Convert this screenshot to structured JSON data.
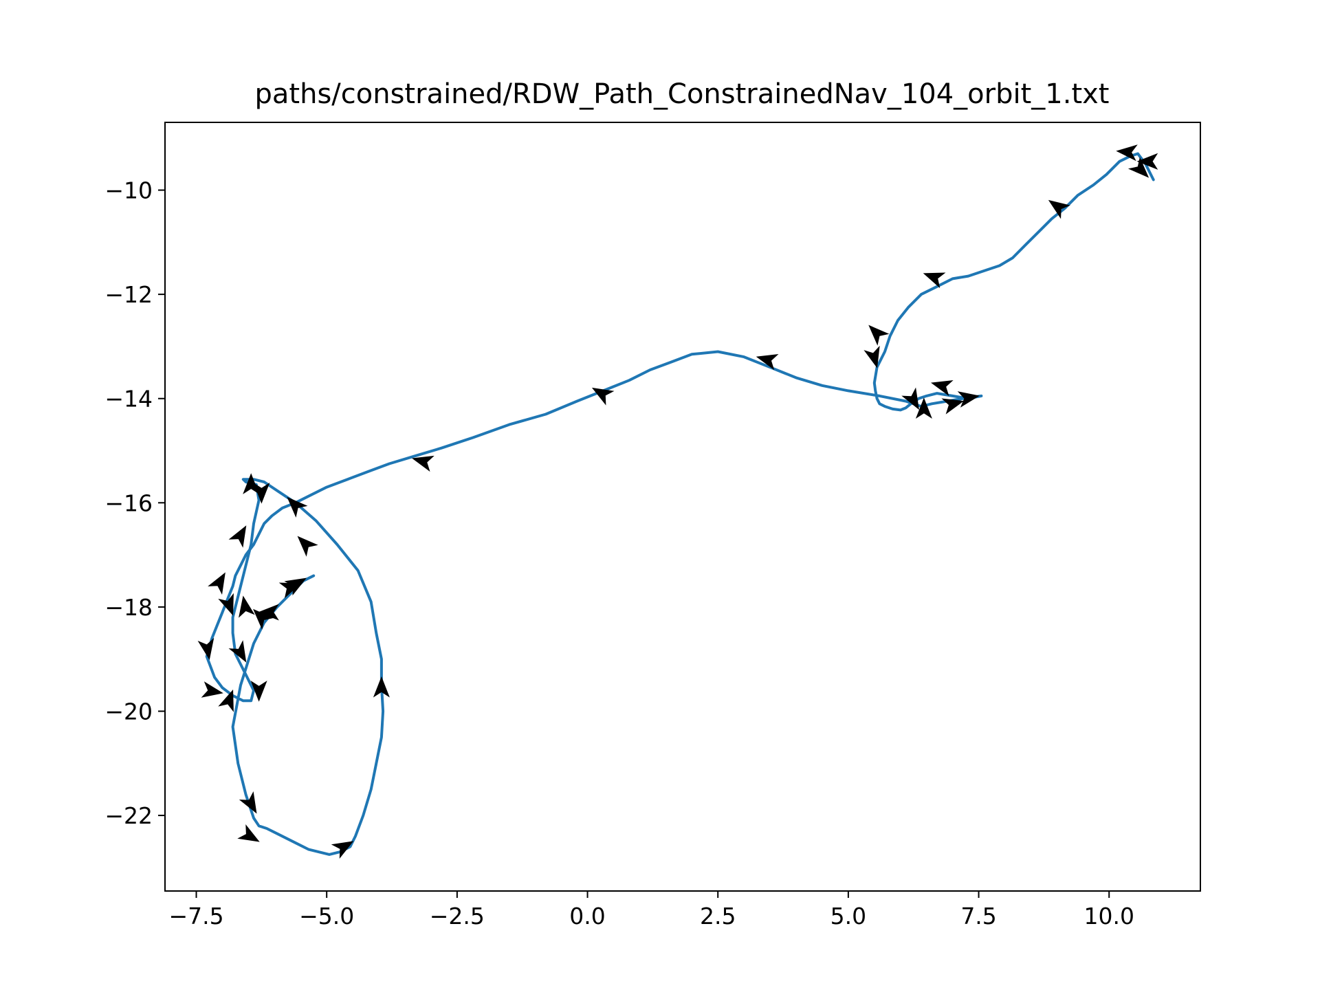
{
  "chart_data": {
    "type": "line",
    "title": "paths/constrained/RDW_Path_ConstrainedNav_104_orbit_1.txt",
    "xlabel": "",
    "ylabel": "",
    "xlim": [
      -8.1,
      11.75
    ],
    "ylim": [
      -23.45,
      -8.7
    ],
    "x_ticks": [
      -7.5,
      -5.0,
      -2.5,
      0.0,
      2.5,
      5.0,
      7.5,
      10.0
    ],
    "x_tick_labels": [
      "−7.5",
      "−5.0",
      "−2.5",
      "0.0",
      "2.5",
      "5.0",
      "7.5",
      "10.0"
    ],
    "y_ticks": [
      -10,
      -12,
      -14,
      -16,
      -18,
      -20,
      -22
    ],
    "y_tick_labels": [
      "−10",
      "−12",
      "−14",
      "−16",
      "−18",
      "−20",
      "−22"
    ],
    "grid": false,
    "colors": {
      "path": "#1f77b4",
      "arrows": "#000000"
    },
    "series": [
      {
        "x": [
          10.85,
          10.7,
          10.55,
          10.4,
          10.2,
          9.95,
          9.7,
          9.4,
          9.15,
          8.9,
          8.65,
          8.4,
          8.15,
          7.9,
          7.6,
          7.3,
          7.0,
          6.7,
          6.4,
          6.15,
          5.95,
          5.8,
          5.7,
          5.55,
          5.5,
          5.52,
          5.55,
          5.6,
          5.7,
          5.85,
          6.0,
          6.1,
          6.2,
          6.35,
          6.5,
          6.7,
          7.0,
          7.3,
          7.55,
          7.2,
          6.9,
          6.6,
          6.4,
          6.1,
          5.6,
          5.0,
          4.5,
          4.0,
          3.5,
          3.0,
          2.5,
          2.0,
          1.6,
          1.2,
          0.8,
          0.3,
          -0.2,
          -0.8,
          -1.5,
          -2.2,
          -2.8,
          -3.3,
          -3.8,
          -4.2,
          -4.6,
          -5.0,
          -5.3,
          -5.6,
          -5.85,
          -6.05,
          -6.2,
          -6.3,
          -6.4,
          -6.55,
          -6.65,
          -6.75,
          -6.8,
          -6.9,
          -7.0,
          -7.1,
          -7.2,
          -7.3,
          -7.15,
          -7.0,
          -6.8,
          -6.6,
          -6.45,
          -6.4,
          -6.55,
          -6.75,
          -6.8,
          -6.8,
          -6.75,
          -6.65,
          -6.55,
          -6.45,
          -6.4,
          -6.3,
          -6.35,
          -6.55,
          -6.6,
          -6.4,
          -6.2,
          -5.9,
          -5.6,
          -5.2,
          -4.8,
          -4.4,
          -4.15,
          -4.05,
          -3.95,
          -3.95,
          -3.92,
          -3.95,
          -4.05,
          -4.15,
          -4.3,
          -4.45,
          -4.55,
          -4.75,
          -4.95,
          -5.15,
          -5.35,
          -5.55,
          -5.75,
          -5.95,
          -6.15,
          -6.3,
          -6.4,
          -6.55,
          -6.7,
          -6.8,
          -6.65,
          -6.4,
          -6.2,
          -5.95,
          -5.75,
          -5.55,
          -5.45,
          -5.35,
          -5.25
        ],
        "y": [
          -9.8,
          -9.5,
          -9.3,
          -9.35,
          -9.45,
          -9.7,
          -9.9,
          -10.1,
          -10.35,
          -10.55,
          -10.8,
          -11.05,
          -11.3,
          -11.45,
          -11.55,
          -11.65,
          -11.7,
          -11.85,
          -12.0,
          -12.25,
          -12.5,
          -12.8,
          -13.1,
          -13.4,
          -13.7,
          -13.85,
          -14.0,
          -14.1,
          -14.15,
          -14.2,
          -14.22,
          -14.18,
          -14.1,
          -14.0,
          -13.95,
          -13.9,
          -13.95,
          -14.0,
          -13.95,
          -14.0,
          -14.05,
          -14.1,
          -14.15,
          -14.05,
          -13.95,
          -13.85,
          -13.75,
          -13.6,
          -13.4,
          -13.2,
          -13.1,
          -13.15,
          -13.3,
          -13.45,
          -13.65,
          -13.85,
          -14.05,
          -14.3,
          -14.5,
          -14.75,
          -14.95,
          -15.1,
          -15.25,
          -15.4,
          -15.55,
          -15.7,
          -15.85,
          -16.0,
          -16.1,
          -16.25,
          -16.4,
          -16.6,
          -16.8,
          -17.0,
          -17.2,
          -17.4,
          -17.6,
          -17.85,
          -18.1,
          -18.35,
          -18.6,
          -18.95,
          -19.35,
          -19.55,
          -19.7,
          -19.8,
          -19.8,
          -19.6,
          -19.3,
          -18.9,
          -18.5,
          -18.2,
          -18.0,
          -17.6,
          -17.2,
          -16.8,
          -16.4,
          -15.95,
          -15.65,
          -15.6,
          -15.55,
          -15.55,
          -15.6,
          -15.8,
          -16.0,
          -16.35,
          -16.8,
          -17.3,
          -17.9,
          -18.5,
          -19.0,
          -19.5,
          -20.0,
          -20.5,
          -21.0,
          -21.5,
          -22.0,
          -22.4,
          -22.6,
          -22.7,
          -22.75,
          -22.7,
          -22.65,
          -22.55,
          -22.45,
          -22.35,
          -22.25,
          -22.2,
          -22.05,
          -21.6,
          -21.0,
          -20.3,
          -19.5,
          -18.7,
          -18.3,
          -18.0,
          -17.8,
          -17.6,
          -17.5,
          -17.45,
          -17.4
        ]
      }
    ],
    "arrows": [
      {
        "x": 10.15,
        "y": -9.25,
        "angle": 175
      },
      {
        "x": 10.55,
        "y": -9.45,
        "angle": 180
      },
      {
        "x": 10.75,
        "y": -9.75,
        "angle": -45
      },
      {
        "x": 8.85,
        "y": -10.2,
        "angle": 145
      },
      {
        "x": 6.45,
        "y": -11.6,
        "angle": 160
      },
      {
        "x": 5.4,
        "y": -12.6,
        "angle": 135
      },
      {
        "x": 5.55,
        "y": -13.4,
        "angle": -75
      },
      {
        "x": 6.35,
        "y": -14.2,
        "angle": -60
      },
      {
        "x": 6.45,
        "y": -14.0,
        "angle": 90
      },
      {
        "x": 6.6,
        "y": -13.7,
        "angle": 165
      },
      {
        "x": 7.2,
        "y": -14.05,
        "angle": 15
      },
      {
        "x": 7.5,
        "y": -13.95,
        "angle": 10
      },
      {
        "x": 3.25,
        "y": -13.2,
        "angle": 165
      },
      {
        "x": 0.1,
        "y": -13.8,
        "angle": 150
      },
      {
        "x": -3.35,
        "y": -15.15,
        "angle": 165
      },
      {
        "x": -5.55,
        "y": -16.65,
        "angle": 135
      },
      {
        "x": -5.75,
        "y": -15.9,
        "angle": 135
      },
      {
        "x": -6.25,
        "y": -16.0,
        "angle": -90
      },
      {
        "x": -6.45,
        "y": -15.45,
        "angle": 90
      },
      {
        "x": -6.55,
        "y": -16.45,
        "angle": 60
      },
      {
        "x": -6.95,
        "y": -17.35,
        "angle": 60
      },
      {
        "x": -6.6,
        "y": -17.8,
        "angle": 100
      },
      {
        "x": -6.4,
        "y": -18.05,
        "angle": 135
      },
      {
        "x": -6.3,
        "y": -18.1,
        "angle": 180
      },
      {
        "x": -5.4,
        "y": -17.45,
        "angle": 30
      },
      {
        "x": -5.5,
        "y": -17.55,
        "angle": 20
      },
      {
        "x": -6.8,
        "y": -18.15,
        "angle": -70
      },
      {
        "x": -6.55,
        "y": -19.05,
        "angle": -60
      },
      {
        "x": -7.25,
        "y": -19.0,
        "angle": -80
      },
      {
        "x": -7.0,
        "y": -19.65,
        "angle": -10
      },
      {
        "x": -6.8,
        "y": -19.6,
        "angle": 70
      },
      {
        "x": -6.3,
        "y": -19.8,
        "angle": -90
      },
      {
        "x": -3.95,
        "y": -19.35,
        "angle": 90
      },
      {
        "x": -6.35,
        "y": -21.95,
        "angle": -60
      },
      {
        "x": -6.3,
        "y": -22.5,
        "angle": -30
      },
      {
        "x": -4.5,
        "y": -22.5,
        "angle": 30
      }
    ]
  }
}
